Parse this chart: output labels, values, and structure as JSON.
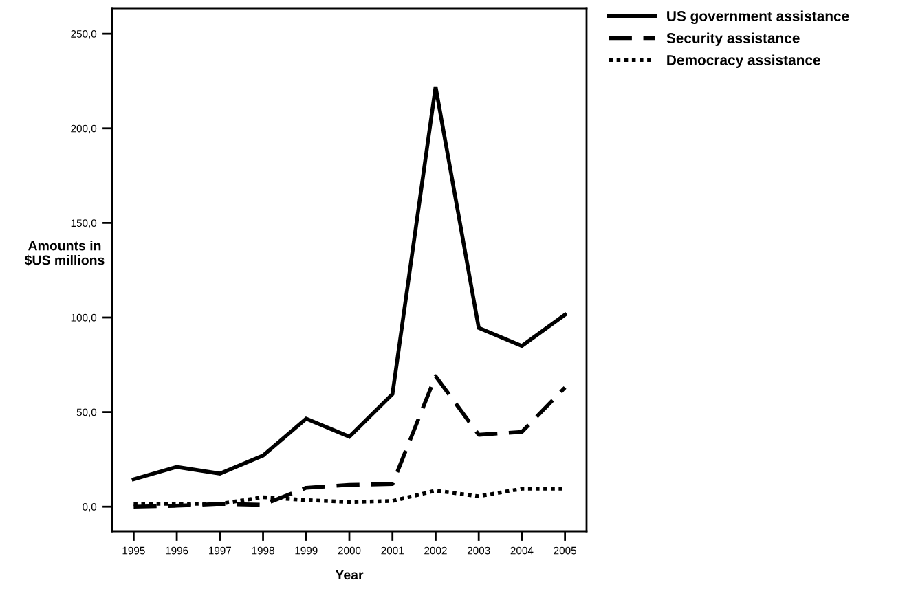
{
  "chart_data": {
    "type": "line",
    "xlabel": "Year",
    "ylabel": "Amounts in\n$US millions",
    "categories": [
      "1995",
      "1996",
      "1997",
      "1998",
      "1999",
      "2000",
      "2001",
      "2002",
      "2003",
      "2004",
      "2005"
    ],
    "ylim": [
      -13,
      263.5
    ],
    "yticks": [
      {
        "value": 0,
        "label": "0,0"
      },
      {
        "value": 50,
        "label": "50,0"
      },
      {
        "value": 100,
        "label": "100,0"
      },
      {
        "value": 150,
        "label": "150,0"
      },
      {
        "value": 200,
        "label": "200,0"
      },
      {
        "value": 250,
        "label": "250,0"
      }
    ],
    "grid": false,
    "legend": "top right",
    "marker": "none",
    "series": [
      {
        "name": "US government assistance",
        "color": "#000000",
        "line_style": "solid",
        "values": [
          14.5,
          21,
          17.5,
          27,
          46.5,
          37,
          59.5,
          222,
          94.5,
          85,
          101.5
        ]
      },
      {
        "name": "Security assistance",
        "color": "#000000",
        "line_style": "dashed",
        "values": [
          0,
          0.5,
          1.5,
          1,
          10,
          11.5,
          12,
          69,
          38,
          39.5,
          63
        ]
      },
      {
        "name": "Democracy assistance",
        "color": "#000000",
        "line_style": "dotted",
        "values": [
          1.5,
          1.5,
          1.5,
          5,
          3.5,
          2.5,
          3,
          8.5,
          5.5,
          9.5,
          9.5
        ]
      }
    ]
  }
}
